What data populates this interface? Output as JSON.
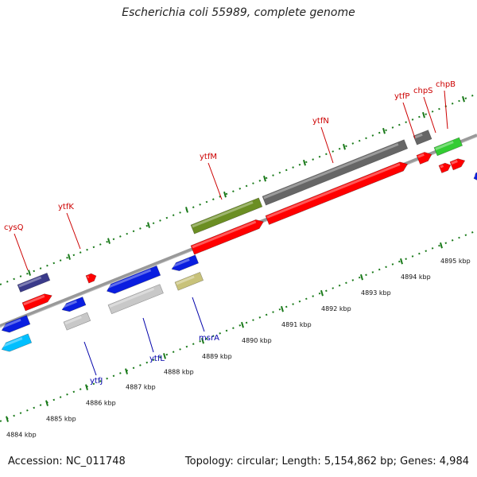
{
  "title": "Escherichia coli 55989, complete genome",
  "footer": {
    "accession": "Accession: NC_011748",
    "topology": "Topology: circular; Length: 5,154,862 bp; Genes: 4,984"
  },
  "kbp_labels": [
    "4884 kbp",
    "4885 kbp",
    "4886 kbp",
    "4887 kbp",
    "4888 kbp",
    "4889 kbp",
    "4890 kbp",
    "4891 kbp",
    "4892 kbp",
    "4893 kbp",
    "4894 kbp",
    "4895 kbp"
  ],
  "gene_labels_forward": [
    "cysQ",
    "ytfK",
    "ytfM",
    "ytfN",
    "ytfP",
    "chpS",
    "chpB"
  ],
  "gene_labels_reverse": [
    "ytfJ",
    "ytfL",
    "msrA"
  ],
  "colors": {
    "forward_label": "#cc0000",
    "reverse_label": "#0000aa",
    "cds_red": "#ff0000",
    "blue": "#0a1ee0",
    "cyan": "#00bfff",
    "purple": "#3a3a8a",
    "olive": "#6b8e23",
    "khaki": "#c8c27a",
    "gray": "#666666",
    "lightgray": "#c8c8c8",
    "green": "#33cc33",
    "tick": "#1a7a1a",
    "backbone": "#888888"
  }
}
